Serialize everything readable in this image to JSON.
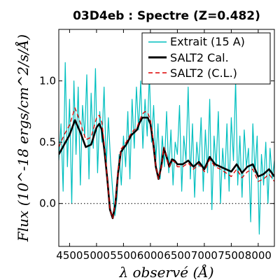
{
  "chart_data": {
    "type": "line",
    "title": "03D4eb : Spectre (Z=0.482)",
    "xlabel": "λ observé (Å)",
    "ylabel": "Flux (10^-18 ergs/cm^2/s/Å)",
    "xlim": [
      4300,
      8300
    ],
    "ylim": [
      -0.35,
      1.42
    ],
    "xticks": [
      4500,
      5000,
      5500,
      6000,
      6500,
      7000,
      7500,
      8000
    ],
    "yticks": [
      0.0,
      0.5,
      1.0
    ],
    "ytick_labels": [
      "0.0",
      "0.5",
      "1.0"
    ],
    "zero_line": true,
    "legend_position": "top-right",
    "legend": [
      "Extrait (15 A)",
      "SALT2 Cal.",
      "SALT2 (C.L.)"
    ],
    "series": [
      {
        "name": "Extrait (15 A)",
        "color": "#00bfbf",
        "style": "solid",
        "x": [
          4300,
          4340,
          4380,
          4420,
          4460,
          4500,
          4540,
          4580,
          4620,
          4660,
          4700,
          4740,
          4780,
          4820,
          4860,
          4900,
          4940,
          4980,
          5020,
          5060,
          5100,
          5140,
          5180,
          5220,
          5260,
          5300,
          5340,
          5380,
          5420,
          5460,
          5500,
          5540,
          5580,
          5620,
          5660,
          5700,
          5740,
          5780,
          5820,
          5860,
          5900,
          5940,
          5980,
          6020,
          6060,
          6100,
          6140,
          6180,
          6220,
          6260,
          6300,
          6340,
          6380,
          6420,
          6460,
          6500,
          6540,
          6580,
          6620,
          6660,
          6700,
          6740,
          6780,
          6820,
          6860,
          6900,
          6940,
          6980,
          7020,
          7060,
          7100,
          7140,
          7180,
          7220,
          7260,
          7300,
          7340,
          7380,
          7420,
          7460,
          7500,
          7540,
          7580,
          7620,
          7660,
          7700,
          7740,
          7780,
          7820,
          7860,
          7900,
          7940,
          7980,
          8020,
          8060,
          8100,
          8140,
          8180,
          8220,
          8260,
          8300
        ],
        "y": [
          0.35,
          0.65,
          0.1,
          1.15,
          0.3,
          0.85,
          0.0,
          1.0,
          0.4,
          0.95,
          0.15,
          0.8,
          0.55,
          1.05,
          0.2,
          0.9,
          0.45,
          1.1,
          0.25,
          0.75,
          0.5,
          0.95,
          0.3,
          0.7,
          0.35,
          0.1,
          -0.1,
          0.05,
          0.4,
          0.15,
          0.55,
          0.3,
          0.75,
          0.2,
          0.85,
          0.45,
          0.95,
          0.6,
          1.0,
          0.45,
          0.85,
          0.55,
          1.05,
          0.5,
          0.8,
          0.35,
          0.65,
          0.2,
          0.55,
          0.3,
          0.75,
          0.25,
          0.6,
          0.15,
          0.5,
          0.4,
          0.8,
          0.1,
          0.55,
          0.35,
          0.95,
          0.2,
          0.65,
          0.05,
          0.5,
          0.3,
          0.7,
          0.1,
          0.6,
          0.25,
          0.85,
          -0.05,
          0.55,
          0.3,
          0.75,
          0.0,
          0.45,
          0.2,
          0.65,
          0.1,
          0.7,
          0.35,
          1.0,
          0.15,
          0.55,
          0.05,
          0.6,
          0.3,
          0.45,
          -0.15,
          0.65,
          0.25,
          0.55,
          -0.25,
          0.4,
          0.15,
          0.5,
          0.0,
          0.45,
          0.2,
          0.35
        ]
      },
      {
        "name": "SALT2 Cal.",
        "color": "#000000",
        "style": "solid",
        "x": [
          4300,
          4400,
          4500,
          4600,
          4700,
          4800,
          4900,
          5000,
          5050,
          5100,
          5150,
          5200,
          5250,
          5300,
          5350,
          5400,
          5450,
          5500,
          5550,
          5600,
          5650,
          5700,
          5750,
          5800,
          5850,
          5900,
          5950,
          6000,
          6050,
          6100,
          6150,
          6200,
          6250,
          6300,
          6350,
          6400,
          6450,
          6500,
          6600,
          6700,
          6800,
          6900,
          7000,
          7100,
          7200,
          7300,
          7400,
          7500,
          7600,
          7700,
          7800,
          7900,
          8000,
          8100,
          8200,
          8300
        ],
        "y": [
          0.4,
          0.48,
          0.56,
          0.68,
          0.58,
          0.46,
          0.48,
          0.62,
          0.65,
          0.6,
          0.42,
          0.2,
          -0.05,
          -0.12,
          0.0,
          0.25,
          0.42,
          0.45,
          0.48,
          0.52,
          0.56,
          0.58,
          0.6,
          0.66,
          0.7,
          0.7,
          0.7,
          0.65,
          0.5,
          0.3,
          0.2,
          0.3,
          0.45,
          0.38,
          0.3,
          0.36,
          0.35,
          0.32,
          0.32,
          0.35,
          0.3,
          0.34,
          0.28,
          0.38,
          0.32,
          0.3,
          0.28,
          0.26,
          0.32,
          0.25,
          0.3,
          0.32,
          0.22,
          0.24,
          0.28,
          0.22
        ]
      },
      {
        "name": "SALT2 (C.L.)",
        "color": "#dd0000",
        "style": "dashed",
        "x": [
          4300,
          4400,
          4500,
          4600,
          4700,
          4800,
          4900,
          5000,
          5050,
          5100,
          5150,
          5200,
          5250,
          5300,
          5350,
          5400,
          5450,
          5500,
          5550,
          5600,
          5650,
          5700,
          5750,
          5800,
          5850,
          5900,
          5950,
          6000,
          6050,
          6100,
          6150,
          6200,
          6250,
          6300,
          6350,
          6400,
          6450,
          6500,
          6600,
          6700,
          6800,
          6900,
          7000,
          7100,
          7200,
          7300,
          7400,
          7500,
          7600,
          7700,
          7800,
          7900,
          8000,
          8100,
          8200,
          8300
        ],
        "y": [
          0.46,
          0.56,
          0.64,
          0.78,
          0.66,
          0.52,
          0.54,
          0.7,
          0.72,
          0.66,
          0.46,
          0.2,
          -0.05,
          -0.12,
          0.0,
          0.26,
          0.44,
          0.47,
          0.5,
          0.54,
          0.58,
          0.6,
          0.62,
          0.68,
          0.73,
          0.75,
          0.74,
          0.68,
          0.52,
          0.3,
          0.2,
          0.3,
          0.46,
          0.38,
          0.3,
          0.35,
          0.34,
          0.3,
          0.3,
          0.33,
          0.28,
          0.32,
          0.26,
          0.36,
          0.3,
          0.28,
          0.25,
          0.22,
          0.28,
          0.21,
          0.26,
          0.28,
          0.18,
          0.2,
          0.24,
          0.18
        ]
      }
    ]
  }
}
